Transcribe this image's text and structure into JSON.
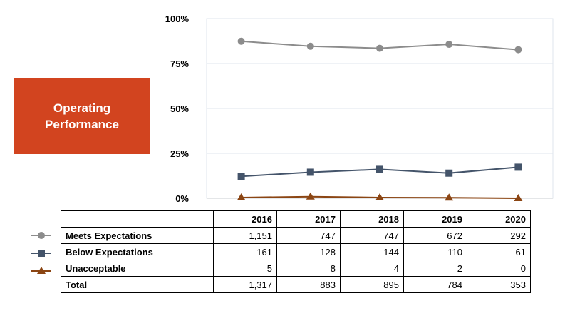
{
  "title": [
    "Operating",
    "Performance"
  ],
  "colors": {
    "title_bg": "#d2441f",
    "meets": "#8c8c8c",
    "below": "#44546a",
    "unacceptable": "#8b4513"
  },
  "chart_data": {
    "type": "line",
    "categories": [
      "2016",
      "2017",
      "2018",
      "2019",
      "2020"
    ],
    "y_ticks": [
      "100%",
      "75%",
      "50%",
      "25%",
      "0%"
    ],
    "ylim": [
      0,
      100
    ],
    "grid": true,
    "series": [
      {
        "name": "Meets Expectations",
        "marker": "circle",
        "values": [
          87.4,
          84.6,
          83.5,
          85.7,
          82.7
        ]
      },
      {
        "name": "Below Expectations",
        "marker": "square",
        "values": [
          12.2,
          14.5,
          16.1,
          14.0,
          17.3
        ]
      },
      {
        "name": "Unacceptable",
        "marker": "triangle",
        "values": [
          0.4,
          0.9,
          0.4,
          0.3,
          0.0
        ]
      }
    ]
  },
  "table": {
    "years": [
      "2016",
      "2017",
      "2018",
      "2019",
      "2020"
    ],
    "rows": [
      {
        "label": "Meets Expectations",
        "values": [
          "1,151",
          "747",
          "747",
          "672",
          "292"
        ]
      },
      {
        "label": "Below Expectations",
        "values": [
          "161",
          "128",
          "144",
          "110",
          "61"
        ]
      },
      {
        "label": "Unacceptable",
        "values": [
          "5",
          "8",
          "4",
          "2",
          "0"
        ]
      },
      {
        "label": "Total",
        "values": [
          "1,317",
          "883",
          "895",
          "784",
          "353"
        ]
      }
    ]
  }
}
